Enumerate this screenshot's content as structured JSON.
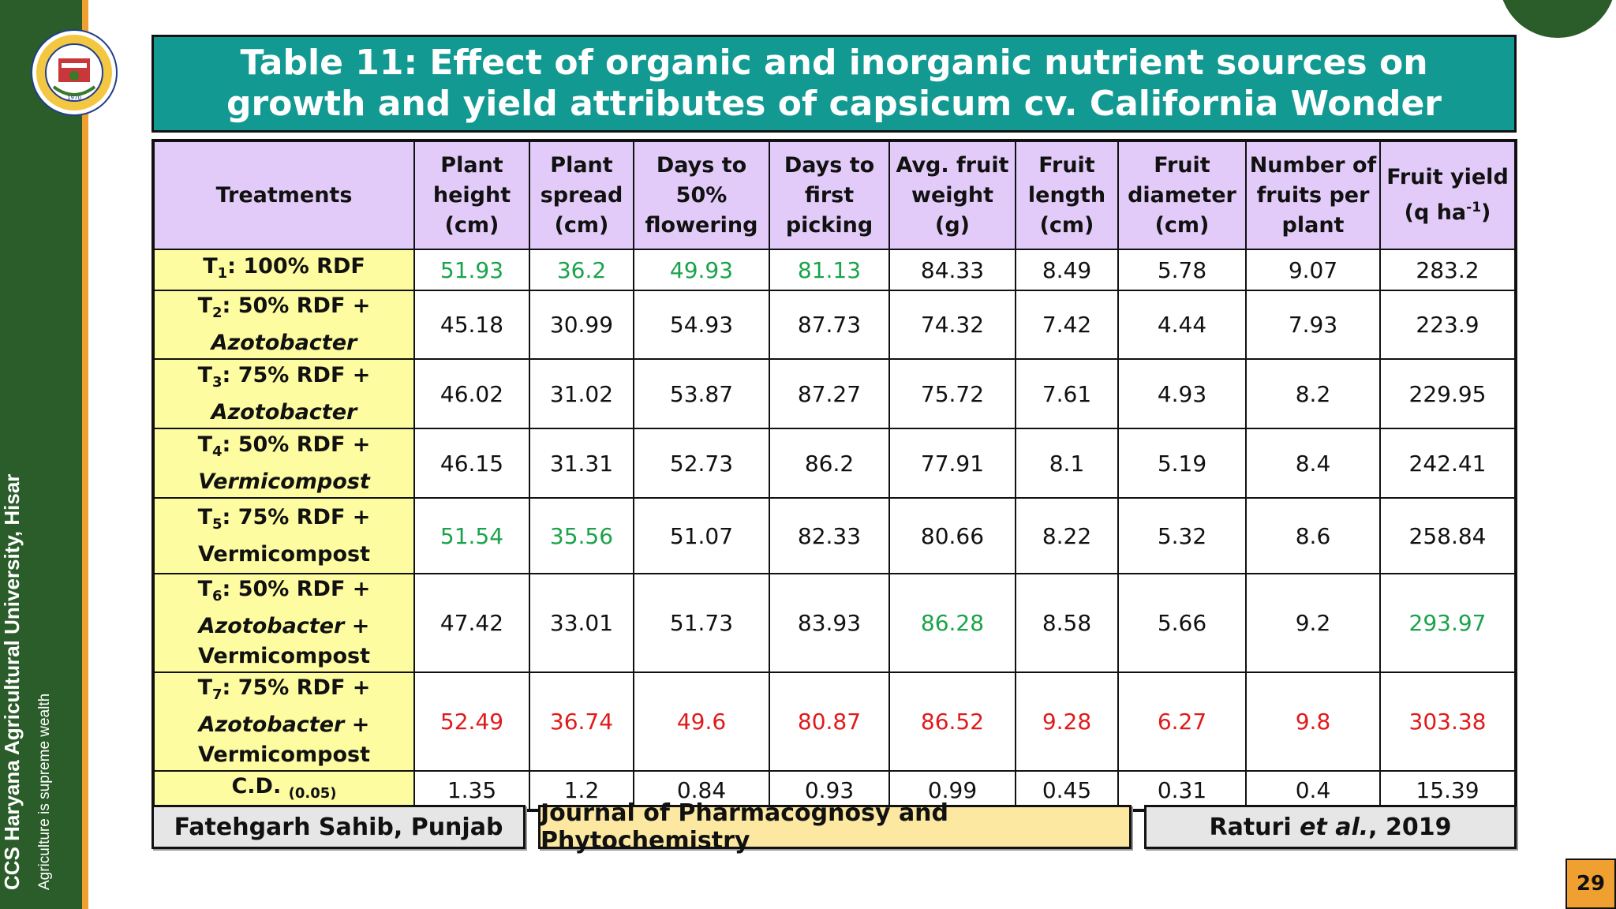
{
  "sidebar": {
    "university": "CCS Haryana Agricultural University, Hisar",
    "motto": "Agriculture is supreme wealth",
    "logo_text": "CHAUDHARY CHARAN SINGH HARYANA AGRICULTURAL UNIVERSITY",
    "logo_year": "1970"
  },
  "title": {
    "line1": "Table 11: Effect of organic and inorganic nutrient sources on",
    "line2": "growth and yield attributes of capsicum cv. California Wonder"
  },
  "table": {
    "headers": {
      "treatments": "Treatments",
      "plant_height": [
        "Plant",
        "height",
        "(cm)"
      ],
      "plant_spread": [
        "Plant",
        "spread",
        "(cm)"
      ],
      "days_flowering": [
        "Days to",
        "50%",
        "flowering"
      ],
      "days_picking": [
        "Days to",
        "first",
        "picking"
      ],
      "fruit_weight": [
        "Avg. fruit",
        "weight",
        "(g)"
      ],
      "fruit_length": [
        "Fruit",
        "length",
        "(cm)"
      ],
      "fruit_diameter": [
        "Fruit",
        "diameter",
        "(cm)"
      ],
      "fruits_per_plant": [
        "Number of",
        "fruits per",
        "plant"
      ],
      "fruit_yield": [
        "Fruit yield",
        "(q ha",
        "-1",
        ")"
      ]
    },
    "rows": [
      {
        "t": "T",
        "n": "1",
        "line1": ": 100% RDF",
        "line2": "",
        "line3": "",
        "values": [
          "51.93",
          "36.2",
          "49.93",
          "81.13",
          "84.33",
          "8.49",
          "5.78",
          "9.07",
          "283.2"
        ]
      },
      {
        "t": "T",
        "n": "2",
        "line1": ": 50% RDF +",
        "line2": "Azotobacter",
        "line3": "",
        "values": [
          "45.18",
          "30.99",
          "54.93",
          "87.73",
          "74.32",
          "7.42",
          "4.44",
          "7.93",
          "223.9"
        ]
      },
      {
        "t": "T",
        "n": "3",
        "line1": ": 75% RDF +",
        "line2": "Azotobacter",
        "line3": "",
        "values": [
          "46.02",
          "31.02",
          "53.87",
          "87.27",
          "75.72",
          "7.61",
          "4.93",
          "8.2",
          "229.95"
        ]
      },
      {
        "t": "T",
        "n": "4",
        "line1": ": 50% RDF +",
        "line2": "Vermicompost",
        "line3": "",
        "values": [
          "46.15",
          "31.31",
          "52.73",
          "86.2",
          "77.91",
          "8.1",
          "5.19",
          "8.4",
          "242.41"
        ]
      },
      {
        "t": "T",
        "n": "5",
        "line1": ": 75% RDF +",
        "line2": "Vermicompost",
        "line3": "",
        "values": [
          "51.54",
          "35.56",
          "51.07",
          "82.33",
          "80.66",
          "8.22",
          "5.32",
          "8.6",
          "258.84"
        ]
      },
      {
        "t": "T",
        "n": "6",
        "line1": ": 50% RDF +",
        "line2": "Azotobacter",
        "line2b": " +",
        "line3": "Vermicompost",
        "values": [
          "47.42",
          "33.01",
          "51.73",
          "83.93",
          "86.28",
          "8.58",
          "5.66",
          "9.2",
          "293.97"
        ]
      },
      {
        "t": "T",
        "n": "7",
        "line1": ": 75% RDF +",
        "line2": "Azotobacter",
        "line2b": " +",
        "line3": "Vermicompost",
        "values": [
          "52.49",
          "36.74",
          "49.6",
          "80.87",
          "86.52",
          "9.28",
          "6.27",
          "9.8",
          "303.38"
        ]
      }
    ],
    "cd": {
      "label": "C.D.",
      "sub": "(0.05)",
      "values": [
        "1.35",
        "1.2",
        "0.84",
        "0.93",
        "0.99",
        "0.45",
        "0.31",
        "0.4",
        "15.39"
      ]
    }
  },
  "footer": {
    "location": "Fatehgarh Sahib, Punjab",
    "journal": "Journal of Pharmacognosy and Phytochemistry",
    "citation_author": "Raturi ",
    "citation_etal": "et al.",
    "citation_year": ", 2019"
  },
  "page_number": "29",
  "colors": {
    "green_highlight": "#1aa34a",
    "red_highlight": "#e01b1b",
    "header_bg": "#e2cbf8",
    "treatment_bg": "#fdfca0",
    "title_bg": "#129a92"
  }
}
